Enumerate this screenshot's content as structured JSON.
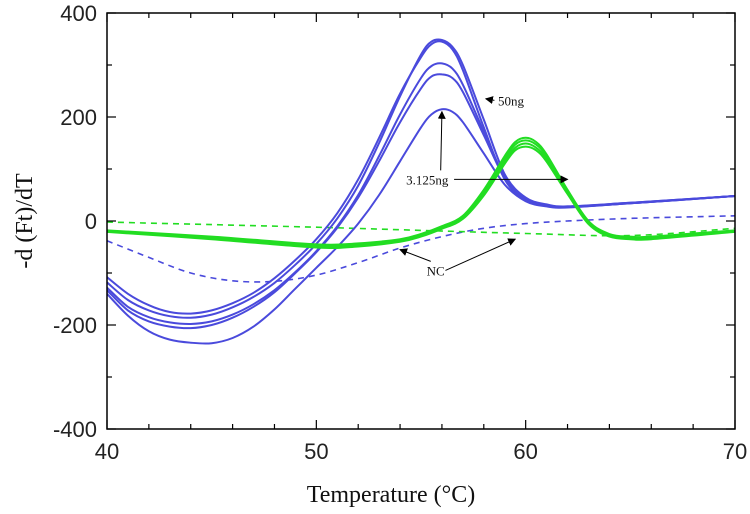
{
  "chart_data": {
    "type": "line",
    "title": "",
    "xlabel": "Temperature (°C)",
    "ylabel": "-d (Ft)/dT",
    "xlim": [
      40,
      70
    ],
    "ylim": [
      -400,
      400
    ],
    "xticks": [
      40,
      50,
      60,
      70
    ],
    "yticks": [
      -400,
      -200,
      0,
      200,
      400
    ],
    "xtick_labels": [
      "40",
      "50",
      "60",
      "70"
    ],
    "ytick_labels": [
      "-400",
      "-200",
      "0",
      "200",
      "400"
    ],
    "grid": false,
    "colors": {
      "blue": "#4a4adc",
      "green": "#22dd22"
    },
    "series": [
      {
        "name": "blue-1",
        "color": "#4a4adc",
        "dash": false,
        "x": [
          40,
          41,
          42,
          43,
          44,
          45,
          46,
          47,
          48,
          49,
          50,
          51,
          52,
          53,
          54,
          55,
          55.5,
          56,
          56.5,
          57,
          58,
          59,
          60,
          61,
          62,
          65,
          70
        ],
        "y": [
          -108,
          -140,
          -162,
          -175,
          -178,
          -172,
          -158,
          -138,
          -110,
          -75,
          -35,
          15,
          80,
          160,
          245,
          315,
          340,
          345,
          330,
          290,
          180,
          80,
          40,
          30,
          28,
          35,
          48
        ]
      },
      {
        "name": "blue-2",
        "color": "#4a4adc",
        "dash": false,
        "x": [
          40,
          41,
          42,
          43,
          44,
          45,
          46,
          47,
          48,
          49,
          50,
          51,
          52,
          53,
          54,
          55,
          55.5,
          56,
          56.5,
          57,
          58,
          59,
          60,
          61,
          62,
          65,
          70
        ],
        "y": [
          -118,
          -152,
          -172,
          -183,
          -186,
          -180,
          -166,
          -146,
          -119,
          -84,
          -44,
          5,
          68,
          150,
          240,
          320,
          345,
          348,
          335,
          300,
          195,
          90,
          45,
          32,
          28,
          35,
          48
        ]
      },
      {
        "name": "blue-3",
        "color": "#4a4adc",
        "dash": false,
        "x": [
          40,
          41,
          42,
          43,
          44,
          45,
          46,
          47,
          48,
          49,
          50,
          51,
          52,
          53,
          54,
          55,
          55.5,
          56,
          56.5,
          57,
          58,
          59,
          60,
          61,
          62,
          65,
          70
        ],
        "y": [
          -128,
          -165,
          -185,
          -195,
          -198,
          -193,
          -180,
          -160,
          -133,
          -98,
          -58,
          -10,
          50,
          125,
          205,
          275,
          298,
          303,
          293,
          262,
          172,
          84,
          42,
          30,
          27,
          34,
          48
        ]
      },
      {
        "name": "blue-4",
        "color": "#4a4adc",
        "dash": false,
        "x": [
          40,
          41,
          42,
          43,
          44,
          45,
          46,
          47,
          48,
          49,
          50,
          51,
          52,
          53,
          54,
          55,
          55.5,
          56,
          56.5,
          57,
          58,
          59,
          60,
          61,
          62,
          65,
          70
        ],
        "y": [
          -133,
          -172,
          -193,
          -203,
          -206,
          -200,
          -186,
          -165,
          -137,
          -100,
          -60,
          -13,
          45,
          115,
          190,
          255,
          278,
          282,
          275,
          248,
          165,
          82,
          40,
          30,
          27,
          34,
          48
        ]
      },
      {
        "name": "blue-5",
        "color": "#4a4adc",
        "dash": false,
        "x": [
          40,
          41,
          42,
          43,
          44,
          45,
          46,
          47,
          48,
          49,
          50,
          51,
          52,
          53,
          54,
          55,
          55.5,
          56,
          56.5,
          57,
          58,
          59,
          60,
          61,
          62,
          65,
          70
        ],
        "y": [
          -140,
          -182,
          -212,
          -228,
          -234,
          -235,
          -225,
          -203,
          -170,
          -130,
          -90,
          -50,
          -5,
          50,
          115,
          180,
          205,
          215,
          210,
          190,
          130,
          70,
          38,
          28,
          26,
          34,
          48
        ]
      },
      {
        "name": "NC-blue",
        "color": "#4a4adc",
        "dash": true,
        "x": [
          40,
          42,
          44,
          46,
          48,
          50,
          52,
          54,
          56,
          58,
          60,
          62,
          65,
          70
        ],
        "y": [
          -38,
          -70,
          -100,
          -115,
          -116,
          -104,
          -80,
          -52,
          -30,
          -14,
          -5,
          0,
          5,
          10
        ]
      },
      {
        "name": "green-1",
        "color": "#22dd22",
        "dash": false,
        "x": [
          40,
          45,
          50,
          52,
          54,
          55,
          56,
          57,
          58,
          59,
          59.5,
          60,
          60.5,
          61,
          62,
          63,
          64,
          65,
          66,
          70
        ],
        "y": [
          -18,
          -30,
          -45,
          -43,
          -35,
          -25,
          -10,
          10,
          60,
          125,
          152,
          160,
          152,
          128,
          60,
          0,
          -25,
          -30,
          -30,
          -18
        ]
      },
      {
        "name": "green-2",
        "color": "#22dd22",
        "dash": false,
        "x": [
          40,
          45,
          50,
          52,
          54,
          55,
          56,
          57,
          58,
          59,
          59.5,
          60,
          60.5,
          61,
          62,
          63,
          64,
          65,
          66,
          70
        ],
        "y": [
          -19,
          -32,
          -47,
          -45,
          -37,
          -27,
          -12,
          8,
          57,
          120,
          147,
          155,
          147,
          124,
          58,
          -2,
          -27,
          -32,
          -32,
          -19
        ]
      },
      {
        "name": "green-3",
        "color": "#22dd22",
        "dash": false,
        "x": [
          40,
          45,
          50,
          52,
          54,
          55,
          56,
          57,
          58,
          59,
          59.5,
          60,
          60.5,
          61,
          62,
          63,
          64,
          65,
          66,
          70
        ],
        "y": [
          -20,
          -33,
          -49,
          -47,
          -38,
          -28,
          -13,
          6,
          53,
          115,
          141,
          149,
          141,
          119,
          55,
          -4,
          -28,
          -33,
          -33,
          -20
        ]
      },
      {
        "name": "green-4",
        "color": "#22dd22",
        "dash": false,
        "x": [
          40,
          45,
          50,
          52,
          54,
          55,
          56,
          57,
          58,
          59,
          59.5,
          60,
          60.5,
          61,
          62,
          63,
          64,
          65,
          66,
          70
        ],
        "y": [
          -21,
          -35,
          -51,
          -49,
          -40,
          -30,
          -15,
          4,
          49,
          110,
          136,
          143,
          136,
          114,
          52,
          -6,
          -30,
          -35,
          -35,
          -21
        ]
      },
      {
        "name": "NC-green",
        "color": "#22dd22",
        "dash": true,
        "x": [
          40,
          45,
          50,
          55,
          60,
          65,
          70
        ],
        "y": [
          -2,
          -7,
          -12,
          -18,
          -24,
          -28,
          -14
        ]
      }
    ],
    "annotations": [
      {
        "text": "50ng",
        "label_at": [
          59.3,
          232
        ],
        "arrow_to": [
          [
            58.1,
            235
          ]
        ]
      },
      {
        "text": "3.125ng",
        "label_at": [
          55.3,
          80
        ],
        "arrow_to": [
          [
            56,
            210
          ],
          [
            62,
            80
          ]
        ]
      },
      {
        "text": "NC",
        "label_at": [
          55.7,
          -95
        ],
        "arrow_to": [
          [
            54,
            -55
          ],
          [
            59.5,
            -35
          ]
        ]
      }
    ]
  }
}
